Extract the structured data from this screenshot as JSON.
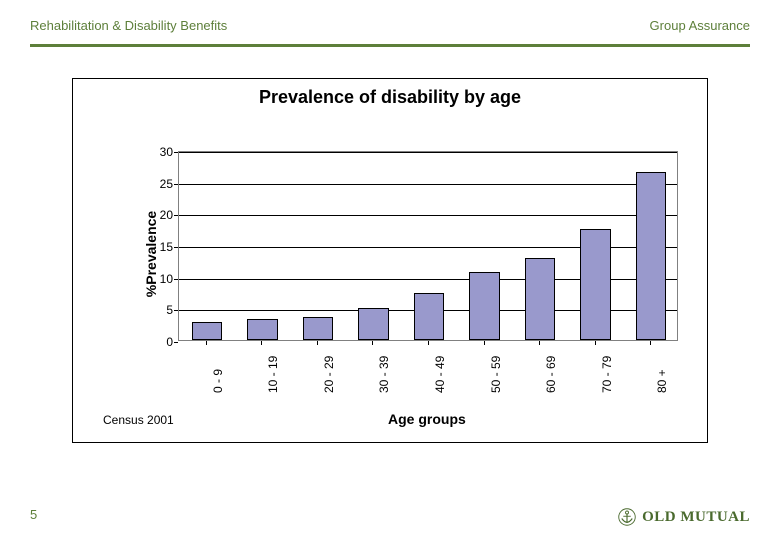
{
  "header": {
    "left": "Rehabilitation & Disability Benefits",
    "right": "Group Assurance",
    "rule_color": "#5d7f3a",
    "text_color": "#5d7f3a"
  },
  "chart": {
    "type": "bar",
    "title": "Prevalence of disability by age",
    "title_fontsize": 18,
    "ylabel": "%Prevalence",
    "xlabel": "Age groups",
    "label_fontsize": 14,
    "tick_fontsize": 12,
    "background_color": "#ffffff",
    "grid_color": "#000000",
    "plot_border_color": "#808080",
    "frame_border_color": "#000000",
    "ylim": [
      0,
      30
    ],
    "ytick_step": 5,
    "bar_color": "#9999cc",
    "bar_border_color": "#000000",
    "bar_width_ratio": 0.55,
    "categories": [
      "0 - 9",
      "10 - 19",
      "20 - 29",
      "30 - 39",
      "40 - 49",
      "50 - 59",
      "60 - 69",
      "70 - 79",
      "80 +"
    ],
    "values": [
      2.8,
      3.3,
      3.7,
      5.0,
      7.5,
      10.8,
      13.0,
      17.5,
      26.5
    ],
    "source": "Census 2001",
    "y_ticks": [
      0,
      5,
      10,
      15,
      20,
      25,
      30
    ]
  },
  "footer": {
    "page_number": "5",
    "logo_text": "OLD MUTUAL",
    "logo_color": "#4a6a2e"
  }
}
